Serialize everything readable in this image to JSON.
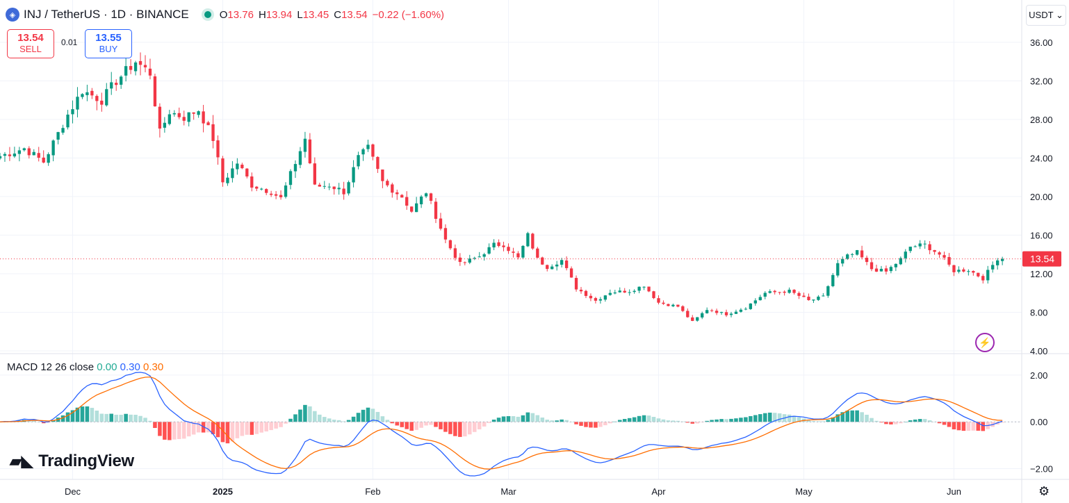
{
  "header": {
    "symbol": "INJ / TetherUS · 1D · BINANCE",
    "o_label": "O",
    "o_value": "13.76",
    "h_label": "H",
    "h_value": "13.94",
    "l_label": "L",
    "l_value": "13.45",
    "c_label": "C",
    "c_value": "13.54",
    "change": "−0.22 (−1.60%)"
  },
  "trade": {
    "sell_price": "13.54",
    "sell_label": "SELL",
    "spread": "0.01",
    "buy_price": "13.55",
    "buy_label": "BUY"
  },
  "currency_selector": "USDT",
  "indicator": {
    "label": "MACD 12 26 close",
    "hist_value": "0.00",
    "macd_value": "0.30",
    "signal_value": "0.30"
  },
  "branding": "TradingView",
  "colors": {
    "up": "#089981",
    "down": "#f23645",
    "hist_up_strong": "#26a69a",
    "hist_up_weak": "#b2dfdb",
    "hist_down_strong": "#ff5252",
    "hist_down_weak": "#ffcdd2",
    "macd_line": "#2962ff",
    "signal_line": "#ff6d00"
  },
  "icons": {
    "symbol": "injective-logo-icon",
    "market_status": "market-open-dot-icon",
    "settings": "gear-icon",
    "alert": "lightning-icon"
  },
  "chart_data": [
    {
      "type": "candlestick",
      "title": "INJ / TetherUS · 1D · BINANCE",
      "ylim": [
        4,
        37.5
      ],
      "y_ticks": [
        "36.00",
        "32.00",
        "28.00",
        "24.00",
        "20.00",
        "16.00",
        "12.00",
        "8.00",
        "4.00"
      ],
      "x_ticks": [
        "Dec",
        "2025",
        "Feb",
        "Mar",
        "Apr",
        "May",
        "Jun"
      ],
      "x_range": [
        "2024-11-16",
        "2025-06-15"
      ],
      "last_price": "13.54",
      "grid": true,
      "close_anchors": [
        [
          "2024-11-16",
          24.2
        ],
        [
          "2024-11-21",
          25.0
        ],
        [
          "2024-11-25",
          23.6
        ],
        [
          "2024-11-30",
          28.5
        ],
        [
          "2024-12-03",
          31.0
        ],
        [
          "2024-12-07",
          30.0
        ],
        [
          "2024-12-10",
          32.0
        ],
        [
          "2024-12-14",
          34.0
        ],
        [
          "2024-12-17",
          32.8
        ],
        [
          "2024-12-19",
          26.6
        ],
        [
          "2024-12-21",
          28.8
        ],
        [
          "2024-12-24",
          28.2
        ],
        [
          "2024-12-27",
          29.0
        ],
        [
          "2024-12-30",
          26.0
        ],
        [
          "2025-01-01",
          21.5
        ],
        [
          "2025-01-04",
          23.5
        ],
        [
          "2025-01-07",
          21.2
        ],
        [
          "2025-01-11",
          20.5
        ],
        [
          "2025-01-13",
          19.8
        ],
        [
          "2025-01-18",
          26.0
        ],
        [
          "2025-01-20",
          21.0
        ],
        [
          "2025-01-23",
          21.2
        ],
        [
          "2025-01-26",
          20.5
        ],
        [
          "2025-01-29",
          24.0
        ],
        [
          "2025-01-31",
          25.0
        ],
        [
          "2025-02-03",
          21.5
        ],
        [
          "2025-02-07",
          20.0
        ],
        [
          "2025-02-09",
          18.5
        ],
        [
          "2025-02-12",
          20.5
        ],
        [
          "2025-02-14",
          18.0
        ],
        [
          "2025-02-16",
          15.5
        ],
        [
          "2025-02-19",
          13.0
        ],
        [
          "2025-02-23",
          13.8
        ],
        [
          "2025-02-26",
          15.0
        ],
        [
          "2025-02-28",
          15.0
        ],
        [
          "2025-03-03",
          13.6
        ],
        [
          "2025-03-05",
          16.0
        ],
        [
          "2025-03-07",
          13.5
        ],
        [
          "2025-03-09",
          12.7
        ],
        [
          "2025-03-12",
          13.4
        ],
        [
          "2025-03-15",
          10.5
        ],
        [
          "2025-03-19",
          9.2
        ],
        [
          "2025-03-22",
          10.1
        ],
        [
          "2025-03-26",
          10.2
        ],
        [
          "2025-03-29",
          10.8
        ],
        [
          "2025-04-01",
          9.0
        ],
        [
          "2025-04-05",
          8.6
        ],
        [
          "2025-04-08",
          7.0
        ],
        [
          "2025-04-11",
          8.3
        ],
        [
          "2025-04-15",
          7.8
        ],
        [
          "2025-04-19",
          8.5
        ],
        [
          "2025-04-23",
          10.0
        ],
        [
          "2025-04-28",
          10.2
        ],
        [
          "2025-05-02",
          9.2
        ],
        [
          "2025-05-05",
          9.6
        ],
        [
          "2025-05-08",
          13.0
        ],
        [
          "2025-05-10",
          13.8
        ],
        [
          "2025-05-12",
          14.2
        ],
        [
          "2025-05-15",
          12.5
        ],
        [
          "2025-05-18",
          12.2
        ],
        [
          "2025-05-21",
          13.5
        ],
        [
          "2025-05-23",
          14.8
        ],
        [
          "2025-05-26",
          15.0
        ],
        [
          "2025-05-29",
          14.0
        ],
        [
          "2025-06-01",
          12.3
        ],
        [
          "2025-06-04",
          12.4
        ],
        [
          "2025-06-07",
          11.5
        ],
        [
          "2025-06-10",
          13.6
        ],
        [
          "2025-06-11",
          13.54
        ]
      ]
    },
    {
      "type": "macd",
      "title": "MACD 12 26 close",
      "ylim": [
        -2.4,
        2.8
      ],
      "y_ticks": [
        "2.00",
        "0.00",
        "−2.00"
      ],
      "series": [
        {
          "name": "Histogram",
          "value": "0.00"
        },
        {
          "name": "MACD",
          "value": "0.30"
        },
        {
          "name": "Signal",
          "value": "0.30"
        }
      ],
      "grid": true
    }
  ]
}
